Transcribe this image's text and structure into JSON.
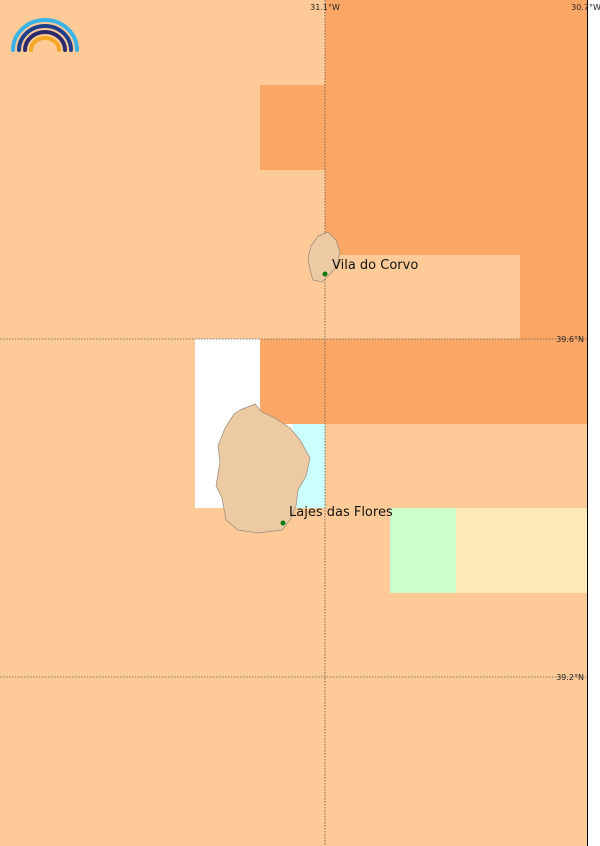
{
  "map": {
    "lon_labels": [
      "31.1°W",
      "30.7°W"
    ],
    "lat_labels": [
      "39.6°N",
      "39.2°N"
    ],
    "places": [
      {
        "name": "Vila do Corvo"
      },
      {
        "name": "Lajes das Flores"
      }
    ]
  }
}
